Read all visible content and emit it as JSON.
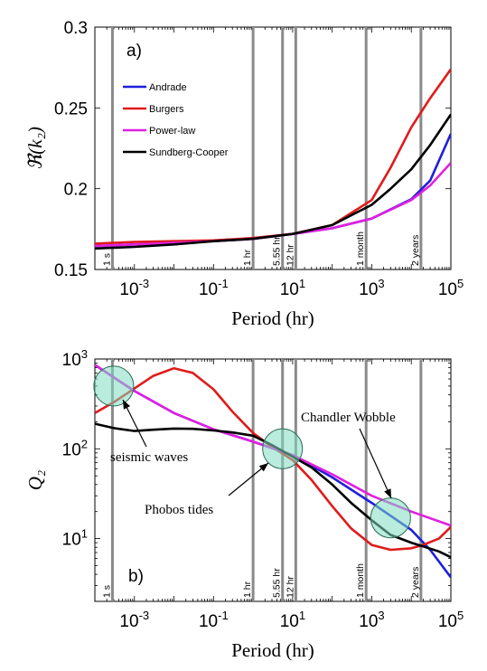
{
  "chart_data": [
    {
      "type": "line",
      "panel_label": "a)",
      "xlabel": "Period (hr)",
      "ylabel": "ℜ(k₂)",
      "xscale": "log",
      "xlim": [
        0.0001,
        100000
      ],
      "ylim": [
        0.15,
        0.3
      ],
      "xticks": [
        {
          "value": 0.001,
          "base": "10",
          "exp": "-3"
        },
        {
          "value": 0.1,
          "base": "10",
          "exp": "-1"
        },
        {
          "value": 10,
          "base": "10",
          "exp": "1"
        },
        {
          "value": 1000,
          "base": "10",
          "exp": "3"
        },
        {
          "value": 100000,
          "base": "10",
          "exp": "5"
        }
      ],
      "yticks": [
        {
          "value": 0.15,
          "label": "0.15"
        },
        {
          "value": 0.2,
          "label": "0.2"
        },
        {
          "value": 0.25,
          "label": "0.25"
        },
        {
          "value": 0.3,
          "label": "0.3"
        }
      ],
      "grid": false,
      "legend_position": "upper-left",
      "vlines": [
        {
          "x": 0.000278,
          "label": "1 s"
        },
        {
          "x": 1,
          "label": "1 hr"
        },
        {
          "x": 5.55,
          "label": "5.55 hr"
        },
        {
          "x": 12,
          "label": "12 hr"
        },
        {
          "x": 720,
          "label": "1 month"
        },
        {
          "x": 17500,
          "label": "2 years"
        }
      ],
      "series": [
        {
          "name": "Andrade",
          "color": "#1f1fdc",
          "x": [
            0.0001,
            0.001,
            0.01,
            0.1,
            1,
            10,
            100,
            1000,
            10000,
            30000,
            100000
          ],
          "y": [
            0.1645,
            0.1655,
            0.1665,
            0.1675,
            0.169,
            0.172,
            0.1755,
            0.1815,
            0.1935,
            0.205,
            0.234
          ]
        },
        {
          "name": "Burgers",
          "color": "#e11a1a",
          "x": [
            0.0001,
            0.001,
            0.01,
            0.1,
            1,
            10,
            100,
            1000,
            3000,
            10000,
            30000,
            100000
          ],
          "y": [
            0.166,
            0.167,
            0.1675,
            0.168,
            0.1695,
            0.172,
            0.1775,
            0.193,
            0.213,
            0.238,
            0.256,
            0.274
          ]
        },
        {
          "name": "Power-law",
          "color": "#e020e0",
          "x": [
            0.0001,
            0.001,
            0.01,
            0.1,
            1,
            10,
            100,
            1000,
            10000,
            30000,
            100000
          ],
          "y": [
            0.1645,
            0.1655,
            0.1665,
            0.1675,
            0.169,
            0.172,
            0.1755,
            0.1815,
            0.193,
            0.202,
            0.216
          ]
        },
        {
          "name": "Sundberg-Cooper",
          "color": "#000000",
          "x": [
            0.0001,
            0.001,
            0.01,
            0.1,
            1,
            10,
            100,
            1000,
            3000,
            10000,
            30000,
            100000
          ],
          "y": [
            0.163,
            0.164,
            0.1655,
            0.1675,
            0.169,
            0.172,
            0.1775,
            0.19,
            0.2,
            0.212,
            0.227,
            0.246
          ]
        }
      ]
    },
    {
      "type": "line",
      "panel_label": "b)",
      "xlabel": "Period (hr)",
      "ylabel": "Q₂",
      "xscale": "log",
      "yscale": "log",
      "xlim": [
        0.0001,
        100000
      ],
      "ylim": [
        2,
        1000
      ],
      "xticks": [
        {
          "value": 0.001,
          "base": "10",
          "exp": "-3"
        },
        {
          "value": 0.1,
          "base": "10",
          "exp": "-1"
        },
        {
          "value": 10,
          "base": "10",
          "exp": "1"
        },
        {
          "value": 1000,
          "base": "10",
          "exp": "3"
        },
        {
          "value": 100000,
          "base": "10",
          "exp": "5"
        }
      ],
      "yticks": [
        {
          "value": 10,
          "base": "10",
          "exp": "1"
        },
        {
          "value": 100,
          "base": "10",
          "exp": "2"
        },
        {
          "value": 1000,
          "base": "10",
          "exp": "3"
        }
      ],
      "grid": false,
      "vlines": [
        {
          "x": 0.000278,
          "label": "1 s"
        },
        {
          "x": 1,
          "label": "1 hr"
        },
        {
          "x": 5.55,
          "label": "5.55 hr"
        },
        {
          "x": 12,
          "label": "12 hr"
        },
        {
          "x": 720,
          "label": "1 month"
        },
        {
          "x": 17500,
          "label": "2 years"
        }
      ],
      "series": [
        {
          "name": "Andrade",
          "color": "#1f1fdc",
          "x": [
            0.0001,
            0.001,
            0.01,
            0.1,
            1,
            10,
            100,
            1000,
            10000,
            30000,
            100000
          ],
          "y": [
            860,
            440,
            250,
            165,
            120,
            85,
            48,
            25,
            12.5,
            7.5,
            3.7
          ]
        },
        {
          "name": "Burgers",
          "color": "#e11a1a",
          "x": [
            0.0001,
            0.0003,
            0.001,
            0.003,
            0.01,
            0.03,
            0.1,
            0.3,
            1,
            3,
            10,
            30,
            100,
            300,
            1000,
            3000,
            10000,
            20000,
            50000,
            100000
          ],
          "y": [
            250,
            330,
            470,
            650,
            790,
            700,
            460,
            260,
            150,
            105,
            75,
            45,
            23,
            13,
            8.5,
            7.5,
            7.8,
            8.5,
            10,
            13.5
          ]
        },
        {
          "name": "Power-law",
          "color": "#e020e0",
          "x": [
            0.0001,
            0.001,
            0.01,
            0.1,
            1,
            10,
            100,
            1000,
            10000,
            100000
          ],
          "y": [
            860,
            440,
            250,
            165,
            120,
            85,
            52,
            30,
            20,
            14
          ]
        },
        {
          "name": "Sundberg-Cooper",
          "color": "#000000",
          "x": [
            0.0001,
            0.0003,
            0.001,
            0.003,
            0.01,
            0.03,
            0.1,
            0.3,
            1,
            3,
            10,
            30,
            100,
            300,
            1000,
            3000,
            10000,
            20000,
            50000,
            100000
          ],
          "y": [
            190,
            170,
            158,
            163,
            168,
            167,
            160,
            152,
            140,
            110,
            82,
            62,
            40,
            25,
            16,
            11,
            9,
            8.2,
            7.2,
            6.2
          ]
        }
      ],
      "annotations": [
        {
          "text": "seismic waves",
          "x": 0.0003,
          "y": 500
        },
        {
          "text": "Phobos tides",
          "x": 5.55,
          "y": 100
        },
        {
          "text": "Chandler Wobble",
          "x": 3000,
          "y": 17
        }
      ]
    }
  ]
}
